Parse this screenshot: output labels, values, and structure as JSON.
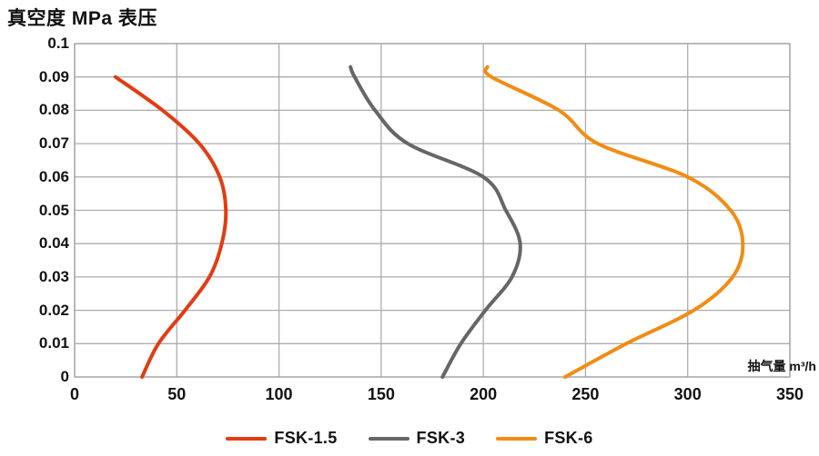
{
  "title": "真空度 MPa 表压",
  "chart_data": {
    "type": "line",
    "title": "真空度 MPa 表压",
    "xlabel": "抽气量 m³/h",
    "ylabel": "真空度 MPa 表压",
    "xlim": [
      0,
      350
    ],
    "ylim": [
      0,
      0.1
    ],
    "x_ticks": [
      0,
      50,
      100,
      150,
      200,
      250,
      300,
      350
    ],
    "y_ticks": [
      0,
      0.01,
      0.02,
      0.03,
      0.04,
      0.05,
      0.06,
      0.07,
      0.08,
      0.09,
      0.1
    ],
    "y_tick_labels": [
      "0",
      "0.01",
      "0.02",
      "0.03",
      "0.04",
      "0.05",
      "0.06",
      "0.07",
      "0.08",
      "0.09",
      "0.1"
    ],
    "grid": true,
    "legend_position": "bottom",
    "series": [
      {
        "name": "FSK-1.5",
        "color": "#E23C12",
        "points": [
          [
            33,
            0
          ],
          [
            41,
            0.01
          ],
          [
            54,
            0.02
          ],
          [
            66,
            0.03
          ],
          [
            72,
            0.04
          ],
          [
            74,
            0.05
          ],
          [
            71,
            0.06
          ],
          [
            61,
            0.07
          ],
          [
            43,
            0.08
          ],
          [
            20,
            0.09
          ]
        ]
      },
      {
        "name": "FSK-3",
        "color": "#666668",
        "points": [
          [
            180,
            0
          ],
          [
            189,
            0.01
          ],
          [
            201,
            0.02
          ],
          [
            214,
            0.03
          ],
          [
            218,
            0.04
          ],
          [
            211,
            0.05
          ],
          [
            200,
            0.06
          ],
          [
            163,
            0.07
          ],
          [
            147,
            0.08
          ],
          [
            137,
            0.09
          ],
          [
            135,
            0.093
          ]
        ]
      },
      {
        "name": "FSK-6",
        "color": "#F28C14",
        "points": [
          [
            240,
            0
          ],
          [
            270,
            0.01
          ],
          [
            303,
            0.02
          ],
          [
            322,
            0.03
          ],
          [
            327,
            0.04
          ],
          [
            321,
            0.05
          ],
          [
            300,
            0.06
          ],
          [
            256,
            0.07
          ],
          [
            237,
            0.08
          ],
          [
            204,
            0.09
          ],
          [
            202,
            0.093
          ]
        ]
      }
    ]
  },
  "style": {
    "grid_color": "#ACACAC",
    "border_color": "#A6A6A6",
    "text_color": "#111111",
    "background": "#FFFFFF",
    "curve_width": 4
  }
}
